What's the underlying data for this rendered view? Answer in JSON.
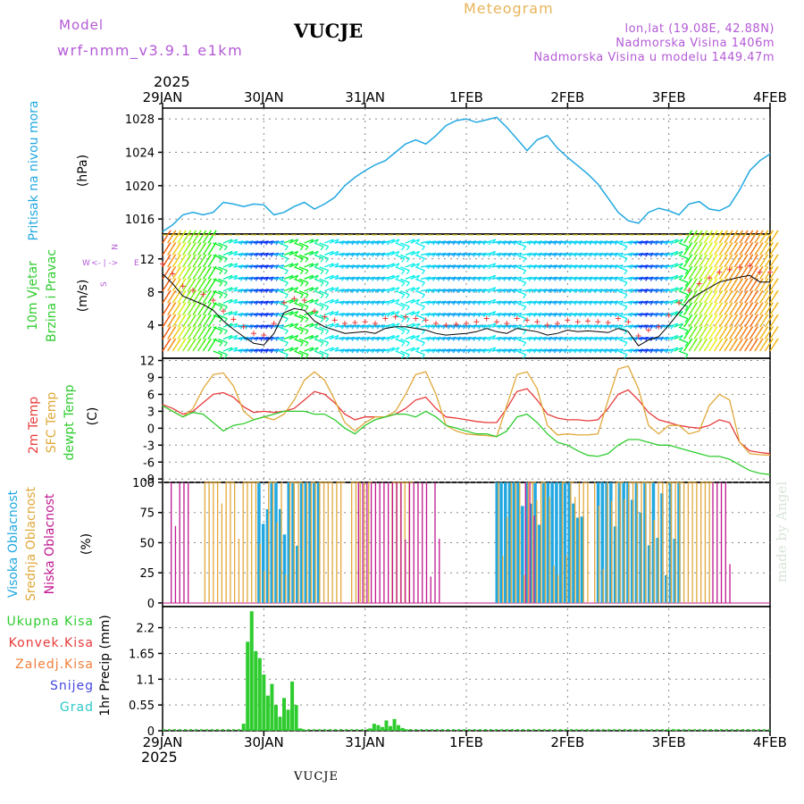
{
  "header": {
    "model_label": "Model",
    "model_name": "wrf-nmm_v3.9.1  e1km",
    "station": "VUCJE",
    "meteogram_label": "Meteogram",
    "coords": "lon,lat (19.08E, 42.88N)",
    "elevation": "Nadmorska Visina 1406m",
    "model_elevation": "Nadmorska Visina u modelu 1449.47m",
    "year_top": "2025",
    "year_bottom": "2025",
    "footer_station": "VUCJE",
    "watermark": "made by Angel"
  },
  "colors": {
    "pressure": "#22a8e0",
    "temp2m": "#e83a3a",
    "sfc": "#e0a83a",
    "dewpt": "#2ecc2e",
    "cloud_high": "#22a8e0",
    "cloud_mid": "#e0a83a",
    "cloud_low": "#c01890",
    "precip": "#2ecc2e"
  },
  "days": [
    "29JAN",
    "30JAN",
    "31JAN",
    "1FEB",
    "2FEB",
    "3FEB",
    "4FEB"
  ],
  "panels": {
    "pressure": {
      "ylabel_a": "Pritisak na nivou mora",
      "ylabel_b": "(hPa)",
      "ticks": [
        "1016",
        "1020",
        "1024",
        "1028"
      ]
    },
    "wind": {
      "ylabel_a": "10m Vjetar",
      "ylabel_b": "Brzina i Pravac",
      "ylabel_c": "(m/s)",
      "ticks": [
        "4",
        "8",
        "12"
      ],
      "compass": {
        "n": "N",
        "s": "S",
        "w": "W",
        "e": "E",
        "arrows": "<- | ->"
      }
    },
    "temp": {
      "ylabel_a": "2m Temp",
      "ylabel_b": "SFC Temp",
      "ylabel_c": "dewpt Temp",
      "ylabel_d": "(C)",
      "ticks": [
        "-9",
        "-6",
        "-3",
        "0",
        "3",
        "6",
        "9",
        "12"
      ]
    },
    "cloud": {
      "ylabel_a": "Visoka Oblacnost",
      "ylabel_b": "Srednja Oblacnost",
      "ylabel_c": "Niska Oblacnost",
      "ylabel_d": "(%)",
      "ticks": [
        "0",
        "25",
        "50",
        "75",
        "100"
      ]
    },
    "precip": {
      "ylabel": "1hr Precip (mm)",
      "ticks": [
        "0",
        "0.55",
        "1.1",
        "1.65",
        "2.2"
      ],
      "legend": [
        "Ukupna Kisa",
        "Konvek.Kisa",
        "Zaledj.Kisa",
        "Snijeg",
        "Grad"
      ],
      "legend_colors": [
        "#2ecc2e",
        "#e83a3a",
        "#f07f3a",
        "#4848e0",
        "#2ec8c8"
      ]
    }
  },
  "chart_data": [
    {
      "type": "line",
      "title": "",
      "ylabel": "Pritisak na nivou mora (hPa)",
      "x_unit": "days since 29JAN 00UTC",
      "ylim": [
        1014.2,
        1029.3
      ],
      "series": [
        {
          "name": "Pritisak na nivou mora",
          "x": [
            0,
            0.1,
            0.2,
            0.3,
            0.4,
            0.5,
            0.6,
            0.7,
            0.8,
            0.9,
            1.0,
            1.1,
            1.2,
            1.3,
            1.4,
            1.5,
            1.6,
            1.7,
            1.8,
            1.9,
            2.0,
            2.1,
            2.2,
            2.3,
            2.4,
            2.5,
            2.6,
            2.7,
            2.8,
            2.9,
            3.0,
            3.1,
            3.2,
            3.3,
            3.4,
            3.5,
            3.6,
            3.7,
            3.8,
            3.9,
            4.0,
            4.1,
            4.2,
            4.3,
            4.4,
            4.5,
            4.6,
            4.7,
            4.8,
            4.9,
            5.0,
            5.1,
            5.2,
            5.3,
            5.4,
            5.5,
            5.6,
            5.7,
            5.8,
            5.9,
            6.0
          ],
          "values": [
            1014.5,
            1015.3,
            1016.5,
            1016.8,
            1016.5,
            1016.8,
            1018.0,
            1017.8,
            1017.5,
            1017.8,
            1017.7,
            1016.5,
            1016.8,
            1017.5,
            1018.0,
            1017.2,
            1017.8,
            1018.6,
            1020.0,
            1021.0,
            1021.8,
            1022.5,
            1023.0,
            1024.0,
            1025.0,
            1025.5,
            1025.0,
            1026.0,
            1027.2,
            1027.8,
            1028.0,
            1027.6,
            1027.9,
            1028.2,
            1027.0,
            1025.6,
            1024.2,
            1025.5,
            1026.0,
            1024.5,
            1023.4,
            1022.4,
            1021.4,
            1020.2,
            1018.5,
            1016.8,
            1015.8,
            1015.5,
            1016.8,
            1017.3,
            1017.0,
            1016.5,
            1017.8,
            1018.1,
            1017.2,
            1017.0,
            1017.6,
            1019.5,
            1021.8,
            1023.0,
            1023.8
          ]
        }
      ]
    },
    {
      "type": "line",
      "title": "",
      "ylabel": "10m Vjetar Brzina i Pravac (m/s)",
      "x_unit": "days since 29JAN 00UTC",
      "ylim": [
        0,
        15
      ],
      "series": [
        {
          "name": "10m Vjetar",
          "x": [
            0,
            0.1,
            0.2,
            0.3,
            0.4,
            0.5,
            0.6,
            0.7,
            0.8,
            0.9,
            1.0,
            1.1,
            1.2,
            1.3,
            1.4,
            1.5,
            1.6,
            1.7,
            1.8,
            1.9,
            2.0,
            2.1,
            2.2,
            2.3,
            2.4,
            2.5,
            2.6,
            2.7,
            2.8,
            2.9,
            3.0,
            3.1,
            3.2,
            3.3,
            3.4,
            3.5,
            3.6,
            3.7,
            3.8,
            3.9,
            4.0,
            4.1,
            4.2,
            4.3,
            4.4,
            4.5,
            4.6,
            4.7,
            4.8,
            4.9,
            5.0,
            5.1,
            5.2,
            5.3,
            5.4,
            5.5,
            5.6,
            5.7,
            5.8,
            5.9,
            6.0
          ],
          "values": [
            10.2,
            9.0,
            7.5,
            7.0,
            6.5,
            5.8,
            4.5,
            3.5,
            2.6,
            1.8,
            1.6,
            3.0,
            5.5,
            6.0,
            5.8,
            4.5,
            3.8,
            3.4,
            3.0,
            3.1,
            3.2,
            3.0,
            3.6,
            3.8,
            3.8,
            3.6,
            3.4,
            3.0,
            2.8,
            2.9,
            3.0,
            3.2,
            3.6,
            3.2,
            3.0,
            3.6,
            3.4,
            3.2,
            2.8,
            3.0,
            3.4,
            3.2,
            3.3,
            3.2,
            3.1,
            3.6,
            3.2,
            1.5,
            2.2,
            2.6,
            4.0,
            5.5,
            7.0,
            7.8,
            8.5,
            9.2,
            9.5,
            9.8,
            10.0,
            9.2,
            9.2
          ]
        }
      ]
    },
    {
      "type": "line",
      "title": "",
      "ylabel": "Temp (C)",
      "x_unit": "days since 29JAN 00UTC",
      "ylim": [
        -9.6,
        12.4
      ],
      "x": [
        0,
        0.1,
        0.2,
        0.3,
        0.4,
        0.5,
        0.6,
        0.7,
        0.8,
        0.9,
        1.0,
        1.1,
        1.2,
        1.3,
        1.4,
        1.5,
        1.6,
        1.7,
        1.8,
        1.9,
        2.0,
        2.1,
        2.2,
        2.3,
        2.4,
        2.5,
        2.6,
        2.7,
        2.8,
        2.9,
        3.0,
        3.1,
        3.2,
        3.3,
        3.4,
        3.5,
        3.6,
        3.7,
        3.8,
        3.9,
        4.0,
        4.1,
        4.2,
        4.3,
        4.4,
        4.5,
        4.6,
        4.7,
        4.8,
        4.9,
        5.0,
        5.1,
        5.2,
        5.3,
        5.4,
        5.5,
        5.6,
        5.7,
        5.8,
        5.9,
        6.0
      ],
      "series": [
        {
          "name": "2m Temp",
          "values": [
            4.2,
            3.5,
            2.5,
            3.0,
            4.5,
            6.0,
            6.3,
            5.5,
            3.8,
            2.8,
            3.0,
            2.8,
            3.0,
            3.5,
            5.0,
            6.5,
            6.0,
            4.5,
            2.5,
            1.5,
            2.0,
            2.0,
            2.0,
            2.5,
            3.5,
            5.0,
            5.5,
            3.5,
            2.0,
            1.8,
            1.5,
            1.2,
            1.0,
            1.0,
            3.5,
            6.5,
            7.0,
            5.0,
            2.5,
            1.8,
            1.5,
            1.5,
            1.3,
            1.5,
            3.5,
            6.0,
            6.8,
            5.0,
            2.8,
            1.5,
            1.0,
            0.5,
            0.2,
            0.0,
            0.5,
            1.5,
            1.0,
            -2.5,
            -4.0,
            -4.3,
            -4.5
          ]
        },
        {
          "name": "SFC Temp",
          "values": [
            4.0,
            3.0,
            2.0,
            3.5,
            7.0,
            9.5,
            9.8,
            7.5,
            3.0,
            1.5,
            2.0,
            1.5,
            2.5,
            5.0,
            8.5,
            10.0,
            8.5,
            5.0,
            1.0,
            -0.5,
            1.0,
            2.0,
            2.0,
            3.0,
            6.0,
            9.5,
            10.0,
            6.0,
            0.5,
            -0.5,
            -1.0,
            -1.2,
            -1.3,
            -1.5,
            4.0,
            9.5,
            10.0,
            7.0,
            0.5,
            -1.2,
            -1.0,
            -1.2,
            -1.2,
            -1.0,
            5.0,
            10.5,
            11.0,
            7.0,
            0.5,
            -1.0,
            0.5,
            0.5,
            -1.0,
            -0.5,
            4.0,
            6.0,
            5.0,
            -2.5,
            -4.5,
            -4.7,
            -4.8
          ]
        },
        {
          "name": "dewpt Temp",
          "values": [
            4.0,
            3.0,
            2.0,
            2.8,
            2.5,
            1.0,
            -0.5,
            0.5,
            0.8,
            1.5,
            2.0,
            2.5,
            3.0,
            3.0,
            3.0,
            2.5,
            2.5,
            1.5,
            0.0,
            -1.0,
            0.5,
            1.5,
            2.0,
            2.5,
            2.5,
            2.0,
            3.0,
            2.0,
            0.5,
            0.0,
            -0.5,
            -1.0,
            -1.0,
            -1.5,
            -0.5,
            2.0,
            2.5,
            1.0,
            -1.0,
            -2.5,
            -3.0,
            -4.0,
            -4.8,
            -5.0,
            -4.5,
            -3.0,
            -2.0,
            -2.0,
            -2.5,
            -3.0,
            -3.0,
            -3.5,
            -4.0,
            -4.5,
            -5.0,
            -5.0,
            -5.5,
            -6.5,
            -7.5,
            -8.0,
            -8.2
          ]
        }
      ]
    },
    {
      "type": "bar",
      "title": "",
      "ylabel": "Oblacnost (%)",
      "ylim": [
        -3,
        100
      ],
      "series": [
        {
          "name": "Visoka Oblacnost",
          "active_days": [
            [
              0.95,
              1.55
            ],
            [
              3.3,
              4.15
            ],
            [
              4.3,
              5.1
            ]
          ]
        },
        {
          "name": "Srednja Oblacnost",
          "active_days": [
            [
              0.4,
              1.75
            ],
            [
              1.85,
              2.05
            ],
            [
              2.25,
              2.45
            ],
            [
              3.3,
              4.2
            ],
            [
              4.25,
              5.4
            ]
          ]
        },
        {
          "name": "Niska Oblacnost",
          "active_days": [
            [
              0.05,
              0.25
            ],
            [
              1.9,
              2.7
            ],
            [
              3.55,
              3.65
            ],
            [
              5.4,
              5.6
            ]
          ]
        }
      ]
    },
    {
      "type": "bar",
      "title": "",
      "ylabel": "1hr Precip (mm)",
      "ylim": [
        0,
        2.65
      ],
      "series": [
        {
          "name": "Ukupna Kisa",
          "x": [
            0.8,
            0.84,
            0.88,
            0.92,
            0.96,
            1.0,
            1.04,
            1.08,
            1.12,
            1.16,
            1.2,
            1.24,
            1.28,
            1.32,
            1.36,
            1.4,
            2.05,
            2.09,
            2.13,
            2.17,
            2.21,
            2.25,
            2.29,
            2.33,
            2.37,
            2.41,
            5.0,
            5.05
          ],
          "values": [
            0.15,
            1.9,
            2.55,
            1.7,
            1.55,
            1.2,
            0.75,
            1.0,
            0.55,
            0.3,
            0.7,
            0.45,
            1.05,
            0.55,
            0.05,
            0.02,
            0.05,
            0.15,
            0.12,
            0.08,
            0.22,
            0.1,
            0.25,
            0.12,
            0.06,
            0.03,
            0.02,
            0.03
          ]
        }
      ]
    }
  ]
}
